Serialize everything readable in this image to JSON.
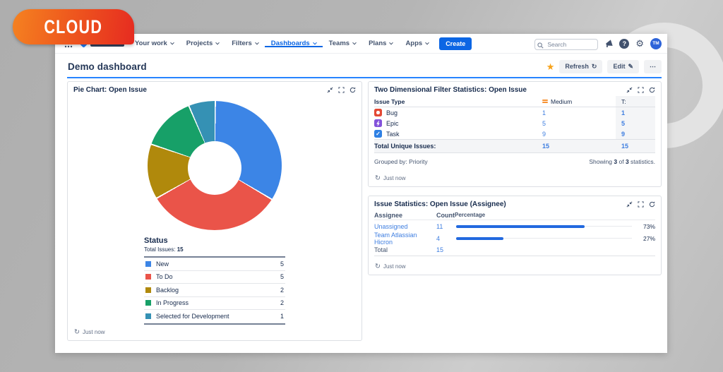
{
  "badge": {
    "label": "CLOUD"
  },
  "nav": {
    "items": [
      "Your work",
      "Projects",
      "Filters",
      "Dashboards",
      "Teams",
      "Plans",
      "Apps"
    ],
    "active_item": "Dashboards",
    "create_label": "Create",
    "search_placeholder": "Search",
    "avatar_initials": "TM"
  },
  "header": {
    "title": "Demo dashboard",
    "refresh_label": "Refresh",
    "edit_label": "Edit",
    "more_label": "⋯"
  },
  "pie_panel": {
    "title": "Pie Chart: Open Issue",
    "legend_title": "Status",
    "total_label": "Total Issues:",
    "total_value": "15",
    "slices": [
      {
        "label": "New",
        "value": 5,
        "color": "#3C85E6"
      },
      {
        "label": "To Do",
        "value": 5,
        "color": "#EA5449"
      },
      {
        "label": "Backlog",
        "value": 2,
        "color": "#B0890C"
      },
      {
        "label": "In Progress",
        "value": 2,
        "color": "#17A068"
      },
      {
        "label": "Selected for Development",
        "value": 1,
        "color": "#3591B4"
      }
    ],
    "refreshed": "Just now"
  },
  "two_dim_panel": {
    "title": "Two Dimensional Filter Statistics: Open Issue",
    "col_type": "Issue Type",
    "col_medium": "Medium",
    "col_total": "T:",
    "rows": [
      {
        "type": "Bug",
        "icon_color": "#E34935",
        "medium": "1",
        "total": "1"
      },
      {
        "type": "Epic",
        "icon_color": "#8352DB",
        "medium": "5",
        "total": "5"
      },
      {
        "type": "Task",
        "icon_color": "#2E80E4",
        "medium": "9",
        "total": "9"
      }
    ],
    "total_row": {
      "label": "Total Unique Issues:",
      "medium": "15",
      "total": "15"
    },
    "grouped_by_label": "Grouped by:",
    "grouped_by_value": "Priority",
    "showing": {
      "prefix": "Showing",
      "count": "3",
      "middle": "of",
      "total": "3",
      "suffix": "statistics."
    },
    "refreshed": "Just now"
  },
  "stats_panel": {
    "title": "Issue Statistics: Open Issue (Assignee)",
    "col_assignee": "Assignee",
    "col_count": "Count",
    "col_percentage": "Percentage",
    "rows": [
      {
        "name": "Unassigned",
        "count": "11",
        "pct": 73,
        "pct_label": "73%"
      },
      {
        "name": "Team Atlassian Hicron",
        "count": "4",
        "pct": 27,
        "pct_label": "27%"
      }
    ],
    "total_label": "Total",
    "total_count": "15",
    "refreshed": "Just now"
  },
  "chart_data": [
    {
      "type": "pie",
      "title": "Pie Chart: Open Issue (Status)",
      "categories": [
        "New",
        "To Do",
        "Backlog",
        "In Progress",
        "Selected for Development"
      ],
      "values": [
        5,
        5,
        2,
        2,
        1
      ],
      "total": 15,
      "legend_position": "bottom"
    },
    {
      "type": "table",
      "title": "Two Dimensional Filter Statistics: Open Issue",
      "columns": [
        "Issue Type",
        "Medium",
        "T:"
      ],
      "rows": [
        [
          "Bug",
          1,
          1
        ],
        [
          "Epic",
          5,
          5
        ],
        [
          "Task",
          9,
          9
        ],
        [
          "Total Unique Issues:",
          15,
          15
        ]
      ]
    },
    {
      "type": "bar",
      "title": "Issue Statistics: Open Issue (Assignee)",
      "categories": [
        "Unassigned",
        "Team Atlassian Hicron"
      ],
      "series": [
        {
          "name": "Count",
          "values": [
            11,
            4
          ]
        },
        {
          "name": "Percentage",
          "values": [
            73,
            27
          ]
        }
      ],
      "total": 15
    }
  ]
}
